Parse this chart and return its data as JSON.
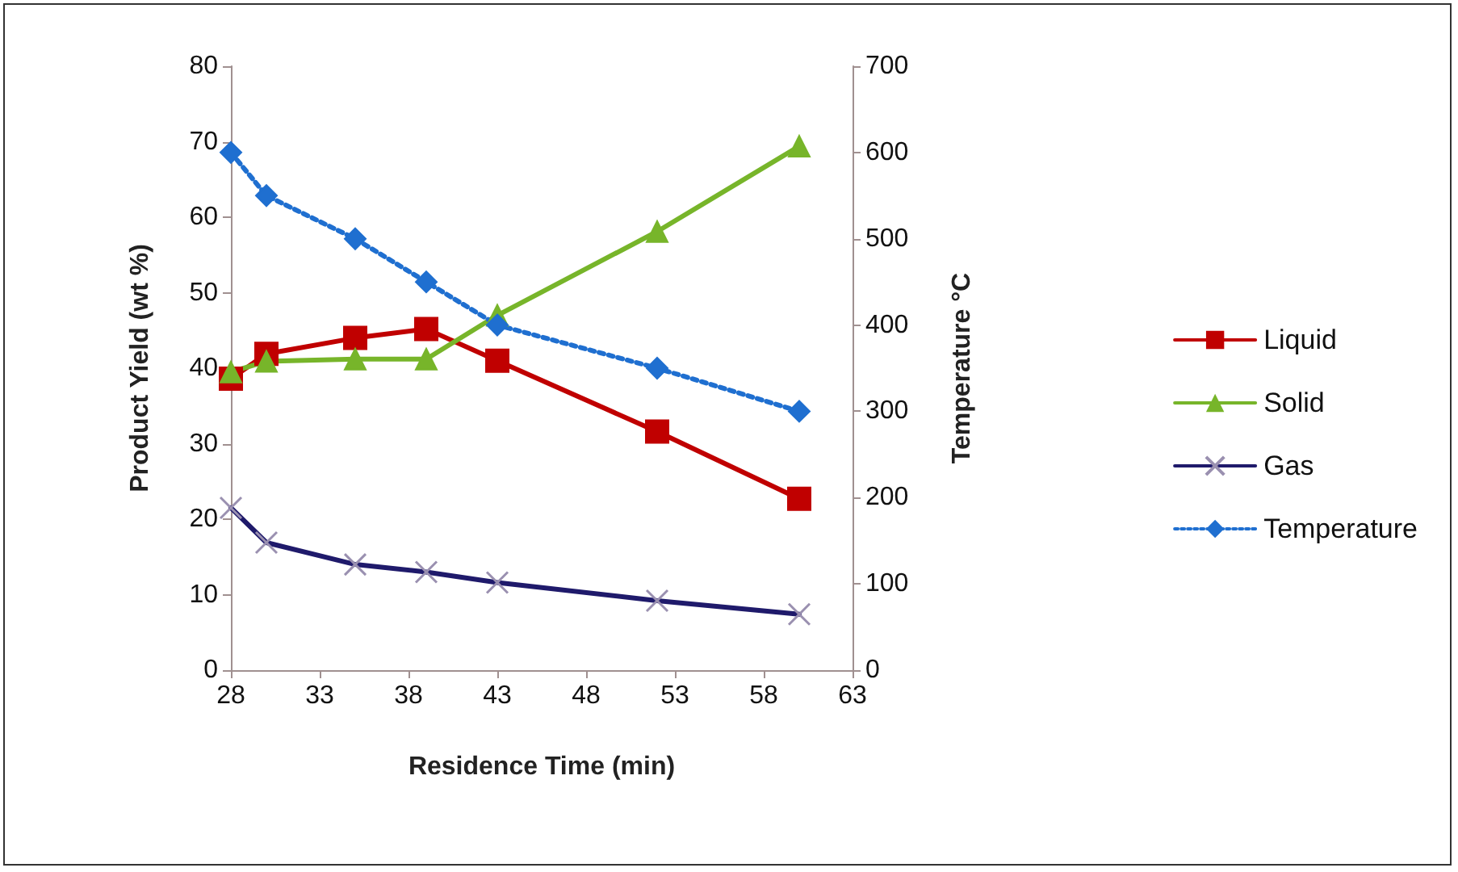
{
  "chart_data": {
    "type": "line",
    "xlabel": "Residence Time (min)",
    "ylabel": "Product Yield (wt %)",
    "y2label": "Temperature °C",
    "x": [
      28,
      30,
      35,
      39,
      43,
      52,
      60
    ],
    "xlim": [
      28,
      63
    ],
    "xticks": [
      28,
      33,
      38,
      43,
      48,
      53,
      58,
      63
    ],
    "ylim": [
      0,
      80
    ],
    "yticks": [
      0,
      10,
      20,
      30,
      40,
      50,
      60,
      70,
      80
    ],
    "y2lim": [
      0,
      700
    ],
    "y2ticks": [
      0,
      100,
      200,
      300,
      400,
      500,
      600,
      700
    ],
    "grid": false,
    "legend": "right",
    "series": [
      {
        "name": "Liquid",
        "color": "#c00000",
        "marker": "square",
        "line_style": "solid",
        "values": [
          38.6,
          41.9,
          44,
          45.2,
          41,
          31.6,
          22.7
        ]
      },
      {
        "name": "Solid",
        "color": "#77b52a",
        "marker": "triangle",
        "line_style": "solid",
        "values": [
          39.5,
          40.9,
          41.2,
          41.2,
          47,
          58.1,
          69.4
        ]
      },
      {
        "name": "Gas",
        "color": "#1f1a6b",
        "marker": "cross",
        "line_style": "solid",
        "values": [
          21.5,
          16.9,
          14,
          13,
          11.6,
          9.2,
          7.4
        ]
      },
      {
        "name": "Temperature",
        "color": "#1f6fd0",
        "marker": "diamond",
        "line_style": "dotted",
        "axis": "y2",
        "values": [
          600,
          550,
          500,
          450,
          400,
          350,
          300
        ]
      }
    ]
  }
}
